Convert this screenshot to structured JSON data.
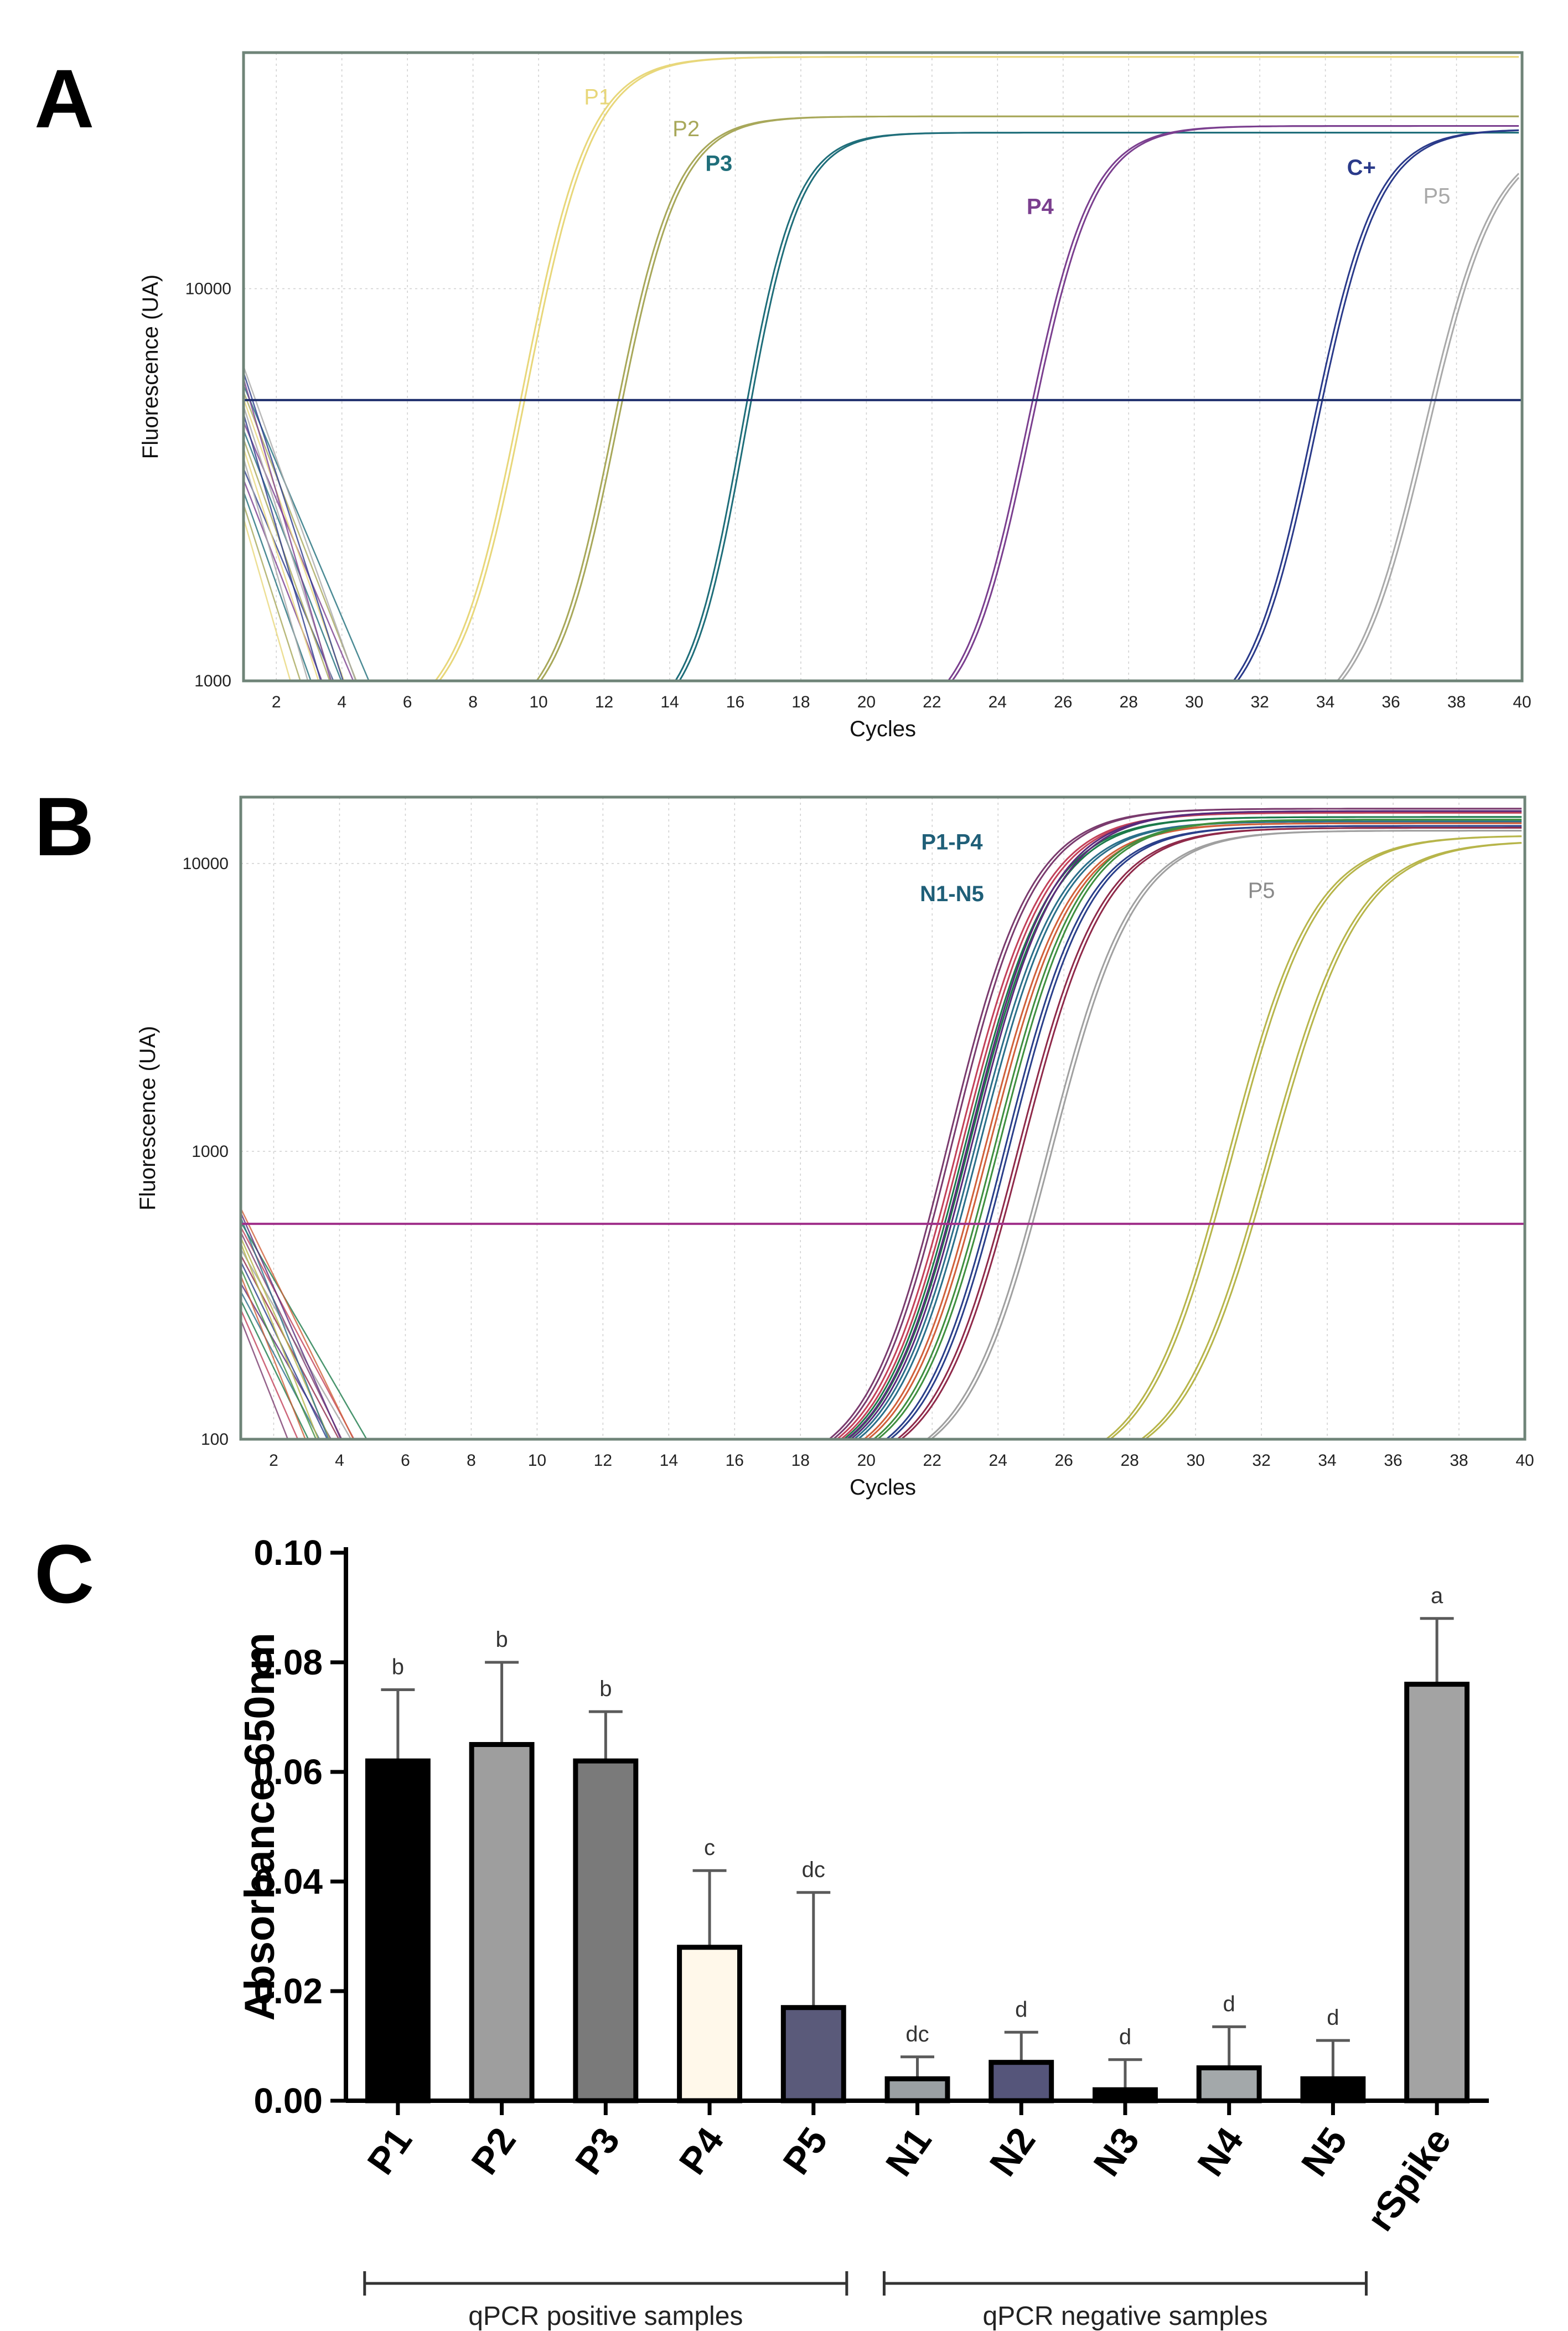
{
  "panels": {
    "A": {
      "letter": "A"
    },
    "B": {
      "letter": "B"
    },
    "C": {
      "letter": "C"
    }
  },
  "chart_data": [
    {
      "panel": "A",
      "type": "line",
      "xlabel": "Cycles",
      "ylabel": "Fluorescence (UA)",
      "xlim": [
        1,
        40
      ],
      "ylim": [
        1000,
        40000
      ],
      "ylog": true,
      "xticks": [
        2,
        4,
        6,
        8,
        10,
        12,
        14,
        16,
        18,
        20,
        22,
        24,
        26,
        28,
        30,
        32,
        34,
        36,
        38,
        40
      ],
      "yticks": [
        1000,
        10000
      ],
      "threshold": 5200,
      "grid": true,
      "series": [
        {
          "name": "P1",
          "color": "#e8d77a",
          "onset": 5.4,
          "mid": 9.5,
          "plateau": 39000,
          "label_x": 11.8,
          "label_y": 29500
        },
        {
          "name": "P2",
          "color": "#a8a85a",
          "onset": 8.5,
          "mid": 12.3,
          "plateau": 27500,
          "label_x": 14.5,
          "label_y": 24500
        },
        {
          "name": "P3",
          "color": "#1f6e7a",
          "onset": 12.9,
          "mid": 16.2,
          "plateau": 25000,
          "label_x": 15.5,
          "label_y": 20000
        },
        {
          "name": "P4",
          "color": "#7b3f8f",
          "onset": 21.0,
          "mid": 24.9,
          "plateau": 26000,
          "label_x": 25.3,
          "label_y": 15500
        },
        {
          "name": "C+",
          "color": "#2a3a8a",
          "onset": 29.7,
          "mid": 33.6,
          "plateau": 25500,
          "label_x": 35.1,
          "label_y": 19500
        },
        {
          "name": "P5",
          "color": "#a9a9a9",
          "onset": 32.7,
          "mid": 37.0,
          "plateau": 24500,
          "label_x": 37.4,
          "label_y": 16500
        }
      ]
    },
    {
      "panel": "B",
      "type": "line",
      "xlabel": "Cycles",
      "ylabel": "Fluorescence (UA)",
      "xlim": [
        1,
        40
      ],
      "ylim": [
        100,
        17000
      ],
      "ylog": true,
      "xticks": [
        2,
        4,
        6,
        8,
        10,
        12,
        14,
        16,
        18,
        20,
        22,
        24,
        26,
        28,
        30,
        32,
        34,
        36,
        38,
        40
      ],
      "yticks": [
        100,
        1000,
        10000
      ],
      "threshold": 560,
      "grid": true,
      "annotations": [
        {
          "text": "P1-P4",
          "x": 22.6,
          "y": 11200,
          "color": "#1f5f78"
        },
        {
          "text": "N1-N5",
          "x": 22.6,
          "y": 7400,
          "color": "#1f5f78"
        },
        {
          "text": "P5",
          "x": 32.0,
          "y": 7600,
          "color": "#8a8a8a"
        }
      ],
      "series": [
        {
          "name": "P1-P4",
          "color": "#7a3b6e",
          "onset": 17.5,
          "mid": 22.5,
          "plateau": 15500
        },
        {
          "name": "P1-P4",
          "color": "#c2415a",
          "onset": 17.7,
          "mid": 22.8,
          "plateau": 15000
        },
        {
          "name": "P1-P4",
          "color": "#1b7a4a",
          "onset": 17.9,
          "mid": 23.0,
          "plateau": 14500
        },
        {
          "name": "P1-P4",
          "color": "#2a6f8a",
          "onset": 18.2,
          "mid": 23.3,
          "plateau": 14000
        },
        {
          "name": "N1-N5",
          "color": "#5a2a7a",
          "onset": 18.0,
          "mid": 23.1,
          "plateau": 15200
        },
        {
          "name": "N1-N5",
          "color": "#d0603a",
          "onset": 18.5,
          "mid": 23.6,
          "plateau": 13800
        },
        {
          "name": "N1-N5",
          "color": "#3f8f3f",
          "onset": 18.8,
          "mid": 23.9,
          "plateau": 14200
        },
        {
          "name": "N1-N5",
          "color": "#2a3f8a",
          "onset": 19.2,
          "mid": 24.2,
          "plateau": 13500
        },
        {
          "name": "N1-N5",
          "color": "#8f2a4a",
          "onset": 19.5,
          "mid": 24.6,
          "plateau": 13300
        },
        {
          "name": "P5",
          "color": "#a0a0a0",
          "onset": 20.4,
          "mid": 25.5,
          "plateau": 13000
        },
        {
          "name": "P5",
          "color": "#b7b54a",
          "onset": 25.8,
          "mid": 31.0,
          "plateau": 12500
        },
        {
          "name": "P5",
          "color": "#b7b54a",
          "onset": 26.8,
          "mid": 32.2,
          "plateau": 12000
        }
      ]
    },
    {
      "panel": "C",
      "type": "bar",
      "ylabel": "Absorbance 650nm",
      "ylim": [
        0,
        0.1
      ],
      "yticks": [
        "0.00",
        "0.02",
        "0.04",
        "0.06",
        "0.08",
        "0.10"
      ],
      "categories": [
        "P1",
        "P2",
        "P3",
        "P4",
        "P5",
        "N1",
        "N2",
        "N3",
        "N4",
        "N5",
        "rSpike"
      ],
      "values": [
        0.062,
        0.065,
        0.062,
        0.028,
        0.017,
        0.004,
        0.007,
        0.002,
        0.006,
        0.004,
        0.076
      ],
      "errors": [
        0.013,
        0.015,
        0.009,
        0.014,
        0.021,
        0.004,
        0.0055,
        0.0055,
        0.0075,
        0.007,
        0.012
      ],
      "significance": [
        "b",
        "b",
        "b",
        "c",
        "dc",
        "dc",
        "d",
        "d",
        "d",
        "d",
        "a"
      ],
      "colors": [
        "#000000",
        "#9e9e9e",
        "#7a7a7a",
        "#fff8ea",
        "#5a5a7a",
        "#9aa0a3",
        "#55557a",
        "#000000",
        "#a3a8aa",
        "#000000",
        "#a3a3a3"
      ],
      "groups": [
        {
          "label": "qPCR positive samples",
          "from": 0,
          "to": 4
        },
        {
          "label": "qPCR negative samples",
          "from": 5,
          "to": 9
        }
      ]
    }
  ]
}
